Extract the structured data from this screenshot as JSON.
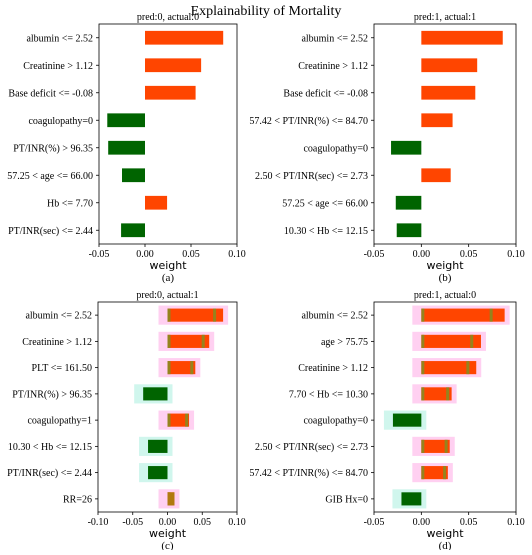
{
  "figure": {
    "title": "Explainability of Mortality",
    "colors": {
      "positive": "#ff4500",
      "negative": "#006400",
      "pink_halo": "#ffc8ee",
      "teal_halo": "#c8f5ea",
      "olive": "#b07a10",
      "olive2": "#8a8a20"
    }
  },
  "chart_data": [
    {
      "type": "bar",
      "orientation": "horizontal",
      "title": "pred:0, actual:0",
      "caption": "(a)",
      "xlabel": "weight",
      "xlim": [
        -0.05,
        0.1
      ],
      "xticks": [
        "-0.05",
        "0.00",
        "0.05",
        "0.10"
      ],
      "categories": [
        "albumin <= 2.52",
        "Creatinine > 1.12",
        "Base deficit <= -0.08",
        "coagulopathy=0",
        "PT/INR(%) > 96.35",
        "57.25 < age <= 66.00",
        "Hb <= 7.70",
        "PT/INR(sec) <= 2.44"
      ],
      "values": [
        0.085,
        0.061,
        0.055,
        -0.041,
        -0.04,
        -0.025,
        0.024,
        -0.026
      ]
    },
    {
      "type": "bar",
      "orientation": "horizontal",
      "title": "pred:1, actual:1",
      "caption": "(b)",
      "xlabel": "weight",
      "xlim": [
        -0.05,
        0.1
      ],
      "xticks": [
        "-0.05",
        "0.00",
        "0.05",
        "0.10"
      ],
      "categories": [
        "albumin <= 2.52",
        "Creatinine > 1.12",
        "Base deficit <= -0.08",
        "57.42 < PT/INR(%) <= 84.70",
        "coagulopathy=0",
        "2.50 < PT/INR(sec) <= 2.73",
        "57.25 < age <= 66.00",
        "10.30 < Hb <= 12.15"
      ],
      "values": [
        0.086,
        0.059,
        0.057,
        0.033,
        -0.032,
        0.031,
        -0.027,
        -0.026
      ]
    },
    {
      "type": "bar",
      "orientation": "horizontal",
      "title": "pred:0, actual:1",
      "caption": "(c)",
      "xlabel": "weight",
      "xlim": [
        -0.1,
        0.1
      ],
      "xticks": [
        "-0.10",
        "-0.05",
        "0.00",
        "0.05",
        "0.10"
      ],
      "categories": [
        "albumin <= 2.52",
        "Creatinine > 1.12",
        "PLT <= 161.50",
        "PT/INR(%) > 96.35",
        "coagulopathy=1",
        "10.30 < Hb <= 12.15",
        "PT/INR(sec) <= 2.44",
        "RR=26"
      ],
      "values": [
        0.08,
        0.06,
        0.04,
        -0.035,
        0.031,
        -0.028,
        -0.028,
        0.01
      ]
    },
    {
      "type": "bar",
      "orientation": "horizontal",
      "title": "pred:1, actual:0",
      "caption": "(d)",
      "xlabel": "weight",
      "xlim": [
        -0.05,
        0.1
      ],
      "xticks": [
        "-0.05",
        "0.00",
        "0.05",
        "0.10"
      ],
      "categories": [
        "albumin <= 2.52",
        "age > 75.75",
        "Creatinine > 1.12",
        "7.70 < Hb <= 10.30",
        "coagulopathy=0",
        "2.50 < PT/INR(sec) <= 2.73",
        "57.42 < PT/INR(%) <= 84.70",
        "GIB Hx=0"
      ],
      "values": [
        0.088,
        0.063,
        0.058,
        0.032,
        -0.03,
        0.03,
        0.028,
        -0.021
      ]
    }
  ]
}
